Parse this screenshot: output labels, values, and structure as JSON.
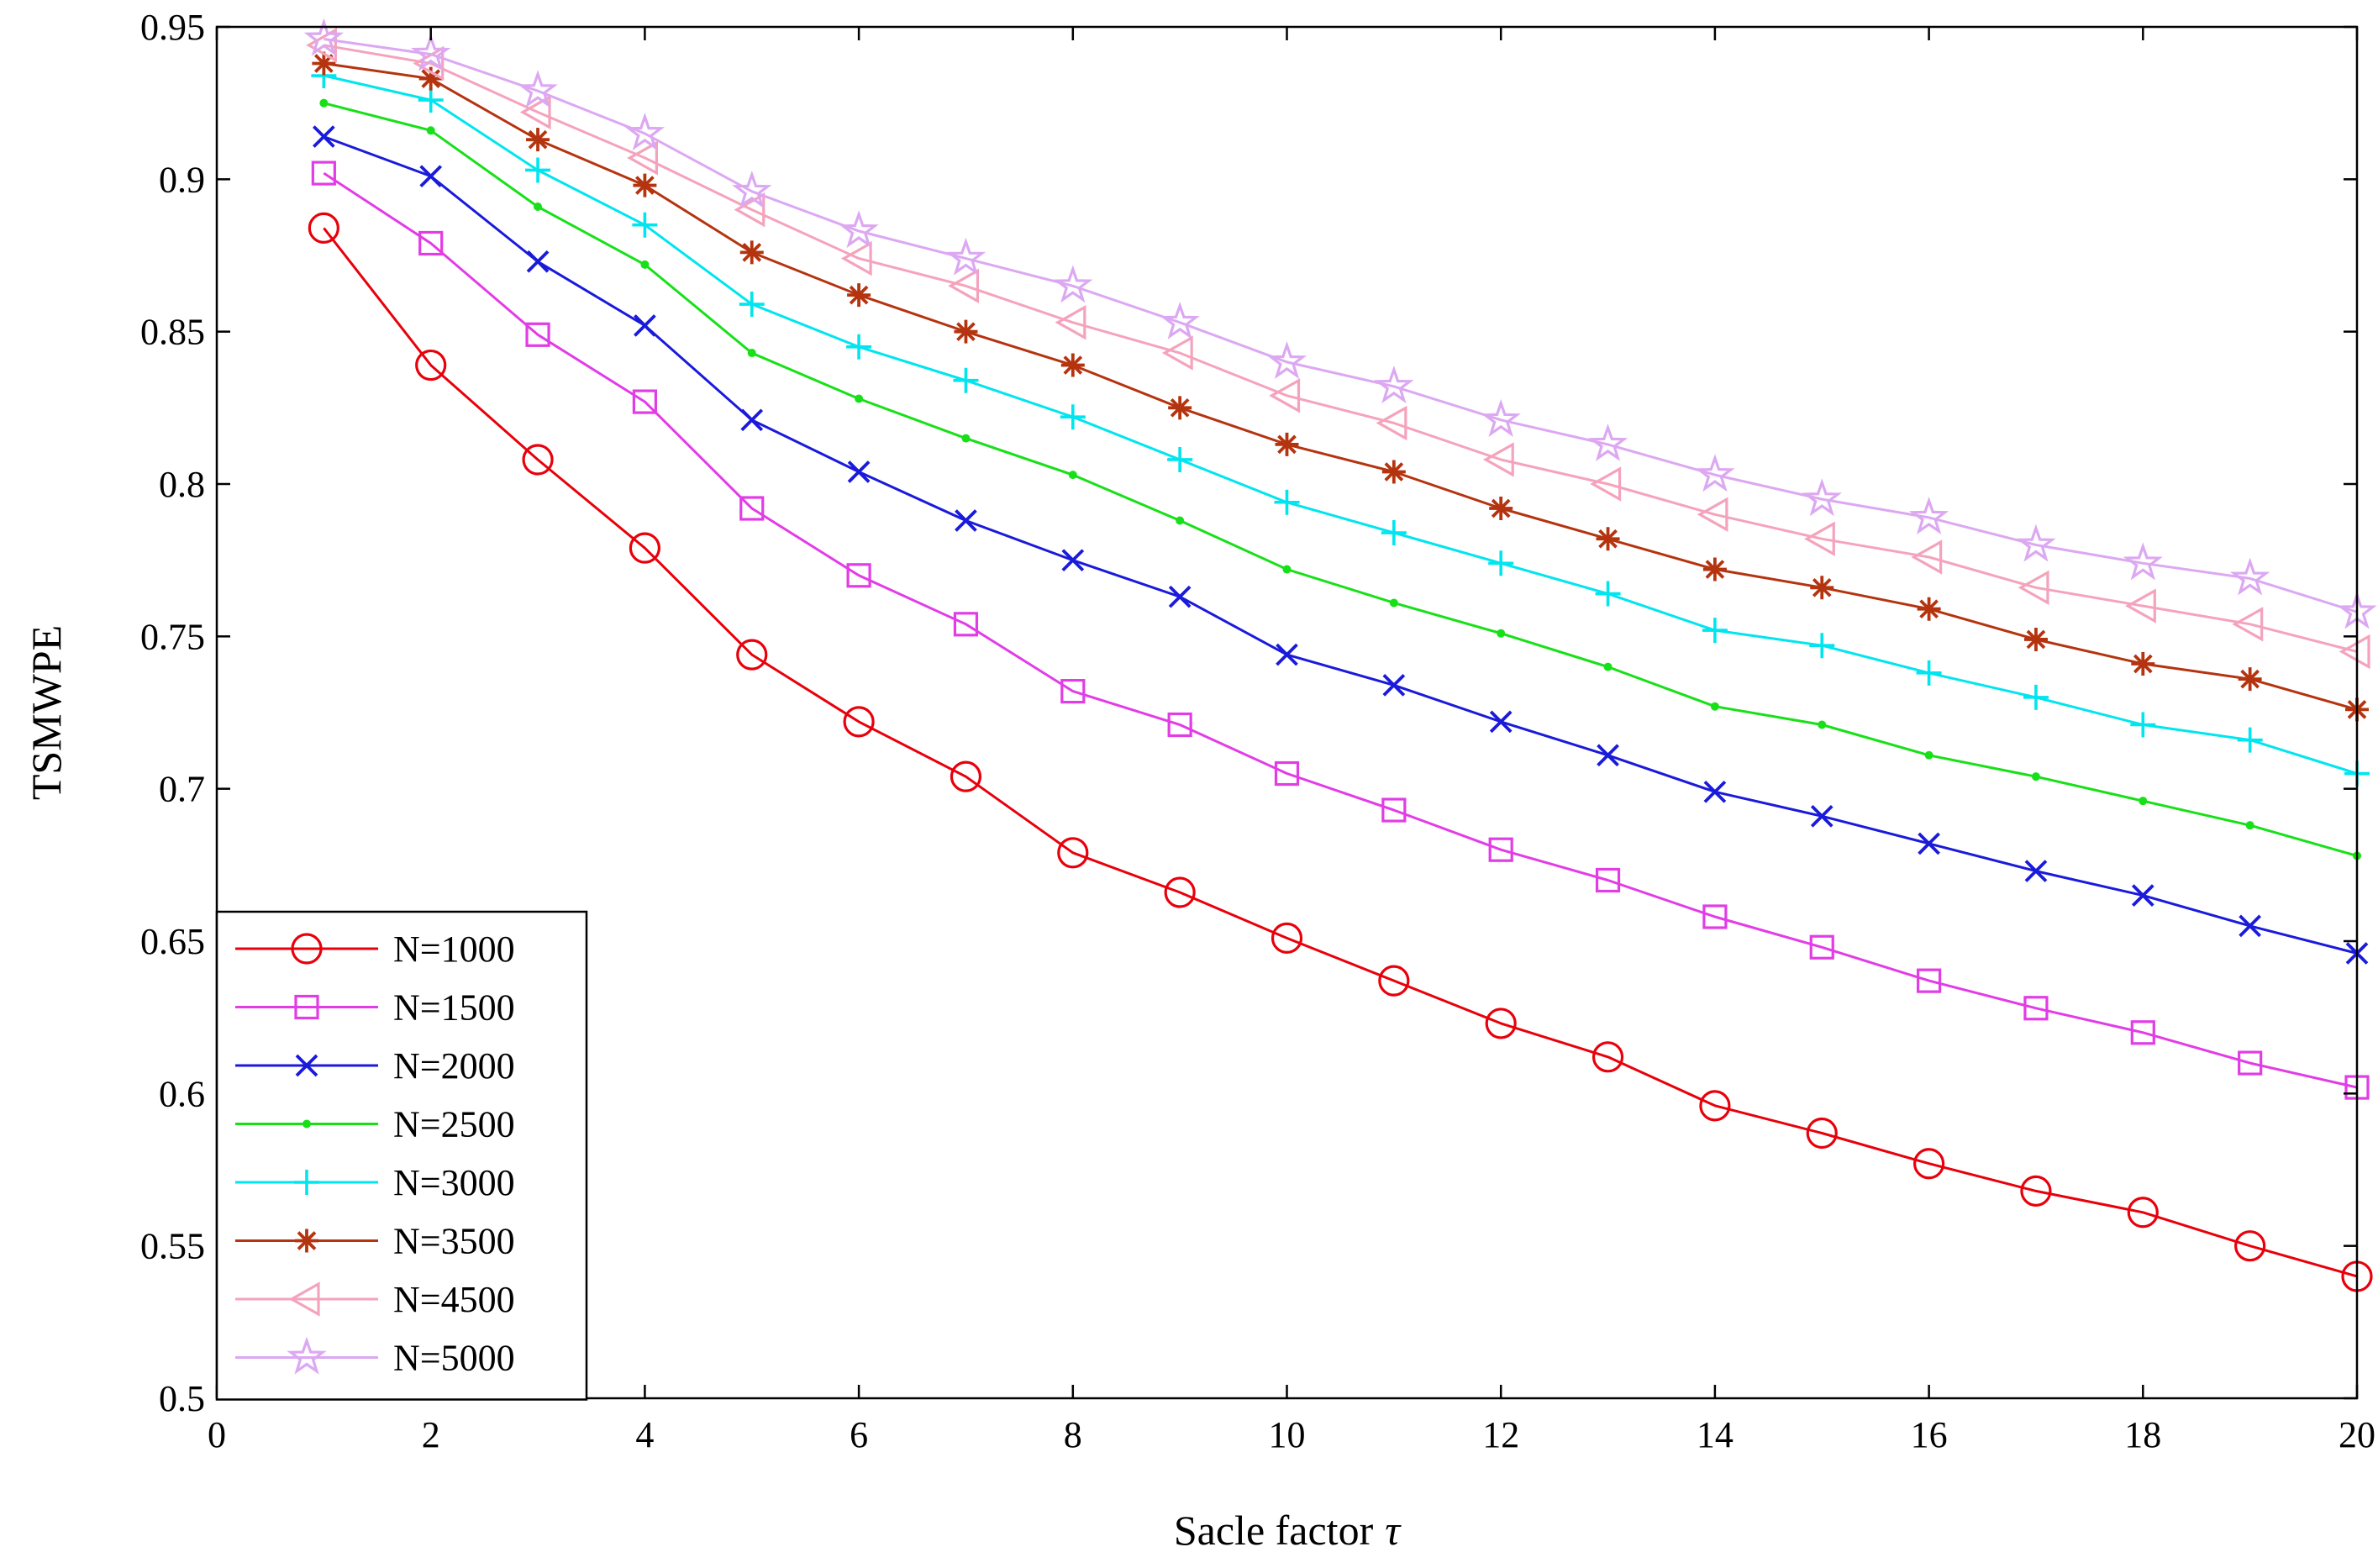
{
  "chart_data": {
    "type": "line",
    "title": "",
    "xlabel": "Sacle factor τ",
    "xlabel_main": "Sacle factor",
    "xlabel_symbol": "τ",
    "ylabel": "TSMWPE",
    "xlim": [
      0,
      20
    ],
    "ylim": [
      0.5,
      0.95
    ],
    "xticks": [
      0,
      2,
      4,
      6,
      8,
      10,
      12,
      14,
      16,
      18,
      20
    ],
    "xtick_labels": [
      "0",
      "2",
      "4",
      "6",
      "8",
      "10",
      "12",
      "14",
      "16",
      "18",
      "20"
    ],
    "yticks": [
      0.5,
      0.55,
      0.6,
      0.65,
      0.7,
      0.75,
      0.8,
      0.85,
      0.9,
      0.95
    ],
    "ytick_labels": [
      "0.5",
      "0.55",
      "0.6",
      "0.65",
      "0.7",
      "0.75",
      "0.8",
      "0.85",
      "0.9",
      "0.95"
    ],
    "grid": false,
    "legend_position": "bottom-left",
    "x": [
      1,
      2,
      3,
      4,
      5,
      6,
      7,
      8,
      9,
      10,
      11,
      12,
      13,
      14,
      15,
      16,
      17,
      18,
      19,
      20
    ],
    "series": [
      {
        "name": "N=1000",
        "color": "#e8000b",
        "marker": "circle",
        "values": [
          0.884,
          0.839,
          0.808,
          0.779,
          0.744,
          0.722,
          0.704,
          0.679,
          0.666,
          0.651,
          0.637,
          0.623,
          0.612,
          0.596,
          0.587,
          0.577,
          0.568,
          0.561,
          0.55,
          0.54
        ]
      },
      {
        "name": "N=1500",
        "color": "#e23ce6",
        "marker": "square",
        "values": [
          0.902,
          0.879,
          0.849,
          0.827,
          0.792,
          0.77,
          0.754,
          0.732,
          0.721,
          0.705,
          0.693,
          0.68,
          0.67,
          0.658,
          0.648,
          0.637,
          0.628,
          0.62,
          0.61,
          0.602
        ]
      },
      {
        "name": "N=2000",
        "color": "#1a1adb",
        "marker": "x",
        "values": [
          0.914,
          0.901,
          0.873,
          0.852,
          0.821,
          0.804,
          0.788,
          0.775,
          0.763,
          0.744,
          0.734,
          0.722,
          0.711,
          0.699,
          0.691,
          0.682,
          0.673,
          0.665,
          0.655,
          0.646
        ]
      },
      {
        "name": "N=2500",
        "color": "#18e018",
        "marker": "dot",
        "values": [
          0.925,
          0.916,
          0.891,
          0.872,
          0.843,
          0.828,
          0.815,
          0.803,
          0.788,
          0.772,
          0.761,
          0.751,
          0.74,
          0.727,
          0.721,
          0.711,
          0.704,
          0.696,
          0.688,
          0.678
        ]
      },
      {
        "name": "N=3000",
        "color": "#00e5ee",
        "marker": "plus",
        "values": [
          0.934,
          0.926,
          0.903,
          0.885,
          0.859,
          0.845,
          0.834,
          0.822,
          0.808,
          0.794,
          0.784,
          0.774,
          0.764,
          0.752,
          0.747,
          0.738,
          0.73,
          0.721,
          0.716,
          0.705
        ]
      },
      {
        "name": "N=3500",
        "color": "#b53410",
        "marker": "asterisk",
        "values": [
          0.938,
          0.933,
          0.913,
          0.898,
          0.876,
          0.862,
          0.85,
          0.839,
          0.825,
          0.813,
          0.804,
          0.792,
          0.782,
          0.772,
          0.766,
          0.759,
          0.749,
          0.741,
          0.736,
          0.726
        ]
      },
      {
        "name": "N=4500",
        "color": "#f5a3bd",
        "marker": "triangle-left",
        "values": [
          0.944,
          0.938,
          0.922,
          0.907,
          0.89,
          0.874,
          0.865,
          0.853,
          0.843,
          0.829,
          0.82,
          0.808,
          0.8,
          0.79,
          0.782,
          0.776,
          0.766,
          0.76,
          0.754,
          0.745
        ]
      },
      {
        "name": "N=5000",
        "color": "#dca8f2",
        "marker": "star",
        "values": [
          0.946,
          0.941,
          0.929,
          0.915,
          0.896,
          0.883,
          0.874,
          0.865,
          0.853,
          0.84,
          0.832,
          0.821,
          0.813,
          0.803,
          0.795,
          0.789,
          0.78,
          0.774,
          0.769,
          0.758
        ]
      }
    ]
  }
}
